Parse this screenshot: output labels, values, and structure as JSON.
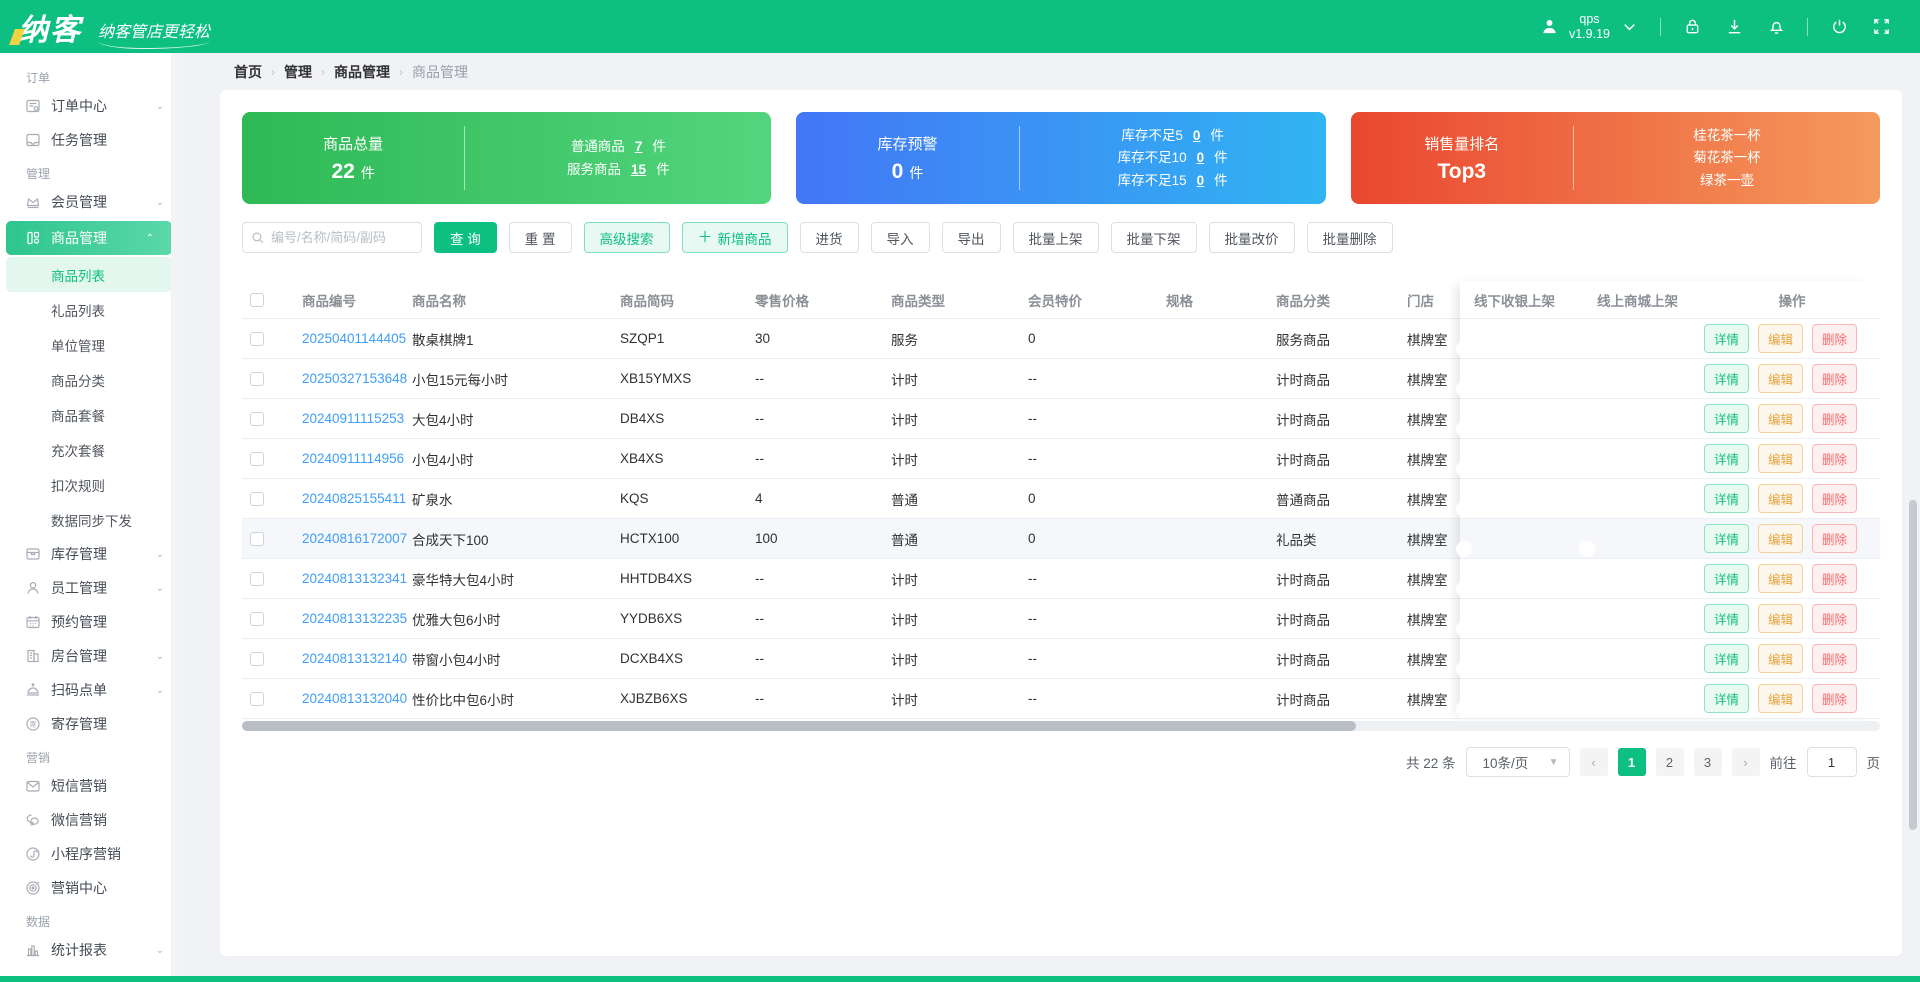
{
  "header": {
    "logo_text": "纳客",
    "tagline": "纳客管店更轻松",
    "user_name": "qps",
    "version": "v1.9.19"
  },
  "sidebar": {
    "sections": [
      {
        "label": "订单",
        "items": [
          {
            "icon": "order-icon",
            "label": "订单中心",
            "expandable": true
          },
          {
            "icon": "task-icon",
            "label": "任务管理"
          }
        ]
      },
      {
        "label": "管理",
        "items": [
          {
            "icon": "member-icon",
            "label": "会员管理",
            "expandable": true
          },
          {
            "icon": "goods-icon",
            "label": "商品管理",
            "expandable": true,
            "active": true,
            "children": [
              {
                "label": "商品列表",
                "active": true
              },
              {
                "label": "礼品列表"
              },
              {
                "label": "单位管理"
              },
              {
                "label": "商品分类"
              },
              {
                "label": "商品套餐"
              },
              {
                "label": "充次套餐"
              },
              {
                "label": "扣次规则"
              },
              {
                "label": "数据同步下发"
              }
            ]
          },
          {
            "icon": "inventory-icon",
            "label": "库存管理",
            "expandable": true
          },
          {
            "icon": "staff-icon",
            "label": "员工管理",
            "expandable": true
          },
          {
            "icon": "booking-icon",
            "label": "预约管理"
          },
          {
            "icon": "room-icon",
            "label": "房台管理",
            "expandable": true
          },
          {
            "icon": "scan-order-icon",
            "label": "扫码点单",
            "expandable": true
          },
          {
            "icon": "storage-icon",
            "label": "寄存管理"
          }
        ]
      },
      {
        "label": "营销",
        "items": [
          {
            "icon": "sms-icon",
            "label": "短信营销"
          },
          {
            "icon": "wechat-icon",
            "label": "微信营销"
          },
          {
            "icon": "miniprogram-icon",
            "label": "小程序营销"
          },
          {
            "icon": "marketing-icon",
            "label": "营销中心"
          }
        ]
      },
      {
        "label": "数据",
        "items": [
          {
            "icon": "stats-icon",
            "label": "统计报表",
            "expandable": true
          }
        ]
      }
    ]
  },
  "breadcrumb": [
    "首页",
    "管理",
    "商品管理",
    "商品管理"
  ],
  "stat_cards": [
    {
      "style": "green",
      "left_label": "商品总量",
      "left_value": "22",
      "left_unit": "件",
      "rows": [
        {
          "label": "普通商品",
          "value": "7",
          "unit": "件"
        },
        {
          "label": "服务商品",
          "value": "15",
          "unit": "件"
        }
      ]
    },
    {
      "style": "blue",
      "left_label": "库存预警",
      "left_value": "0",
      "left_unit": "件",
      "rows": [
        {
          "label": "库存不足5",
          "value": "0",
          "unit": "件"
        },
        {
          "label": "库存不足10",
          "value": "0",
          "unit": "件"
        },
        {
          "label": "库存不足15",
          "value": "0",
          "unit": "件"
        }
      ]
    },
    {
      "style": "orange",
      "left_label": "销售量排名",
      "left_value": "Top3",
      "left_unit": "",
      "rows": [
        {
          "label": "桂花茶一杯"
        },
        {
          "label": "菊花茶一杯"
        },
        {
          "label": "绿茶一壶"
        }
      ]
    }
  ],
  "toolbar": {
    "search_placeholder": "编号/名称/简码/副码",
    "query_label": "查 询",
    "reset_label": "重 置",
    "advanced_label": "高级搜索",
    "add_label": "新增商品",
    "other_buttons": [
      "进货",
      "导入",
      "导出",
      "批量上架",
      "批量下架",
      "批量改价",
      "批量删除"
    ]
  },
  "table": {
    "columns": [
      "商品编号",
      "商品名称",
      "商品简码",
      "零售价格",
      "商品类型",
      "会员特价",
      "规格",
      "商品分类",
      "门店",
      "线下收银上架",
      "线上商城上架",
      "操作"
    ],
    "actions": {
      "detail": "详情",
      "edit": "编辑",
      "delete": "删除"
    },
    "rows": [
      {
        "id": "20250401144405",
        "name": "散桌棋牌1",
        "code": "SZQP1",
        "price": "30",
        "type": "服务",
        "member_price": "0",
        "spec": "",
        "category": "服务商品",
        "store": "棋牌室",
        "offline": true,
        "online": true,
        "highlight": false
      },
      {
        "id": "20250327153648",
        "name": "小包15元每小时",
        "code": "XB15YMXS",
        "price": "--",
        "type": "计时",
        "member_price": "--",
        "spec": "",
        "category": "计时商品",
        "store": "棋牌室",
        "offline": true,
        "online": false,
        "highlight": false
      },
      {
        "id": "20240911115253",
        "name": "大包4小时",
        "code": "DB4XS",
        "price": "--",
        "type": "计时",
        "member_price": "--",
        "spec": "",
        "category": "计时商品",
        "store": "棋牌室",
        "offline": true,
        "online": false,
        "highlight": false
      },
      {
        "id": "20240911114956",
        "name": "小包4小时",
        "code": "XB4XS",
        "price": "--",
        "type": "计时",
        "member_price": "--",
        "spec": "",
        "category": "计时商品",
        "store": "棋牌室",
        "offline": true,
        "online": false,
        "highlight": false
      },
      {
        "id": "20240825155411",
        "name": "矿泉水",
        "code": "KQS",
        "price": "4",
        "type": "普通",
        "member_price": "0",
        "spec": "",
        "category": "普通商品",
        "store": "棋牌室",
        "offline": true,
        "online": true,
        "highlight": false
      },
      {
        "id": "20240816172007",
        "name": "合成天下100",
        "code": "HCTX100",
        "price": "100",
        "type": "普通",
        "member_price": "0",
        "spec": "",
        "category": "礼品类",
        "store": "棋牌室",
        "offline": true,
        "online": true,
        "highlight": true
      },
      {
        "id": "20240813132341",
        "name": "豪华特大包4小时",
        "code": "HHTDB4XS",
        "price": "--",
        "type": "计时",
        "member_price": "--",
        "spec": "",
        "category": "计时商品",
        "store": "棋牌室",
        "offline": true,
        "online": false,
        "highlight": false
      },
      {
        "id": "20240813132235",
        "name": "优雅大包6小时",
        "code": "YYDB6XS",
        "price": "--",
        "type": "计时",
        "member_price": "--",
        "spec": "",
        "category": "计时商品",
        "store": "棋牌室",
        "offline": true,
        "online": false,
        "highlight": false
      },
      {
        "id": "20240813132140",
        "name": "带窗小包4小时",
        "code": "DCXB4XS",
        "price": "--",
        "type": "计时",
        "member_price": "--",
        "spec": "",
        "category": "计时商品",
        "store": "棋牌室",
        "offline": true,
        "online": false,
        "highlight": false
      },
      {
        "id": "20240813132040",
        "name": "性价比中包6小时",
        "code": "XJBZB6XS",
        "price": "--",
        "type": "计时",
        "member_price": "--",
        "spec": "",
        "category": "计时商品",
        "store": "棋牌室",
        "offline": true,
        "online": false,
        "highlight": false
      }
    ]
  },
  "pagination": {
    "total_label": "共 22 条",
    "page_size_label": "10条/页",
    "pages": [
      "1",
      "2",
      "3"
    ],
    "active_page": "1",
    "goto_label": "前往",
    "goto_value": "1",
    "page_unit_label": "页"
  }
}
